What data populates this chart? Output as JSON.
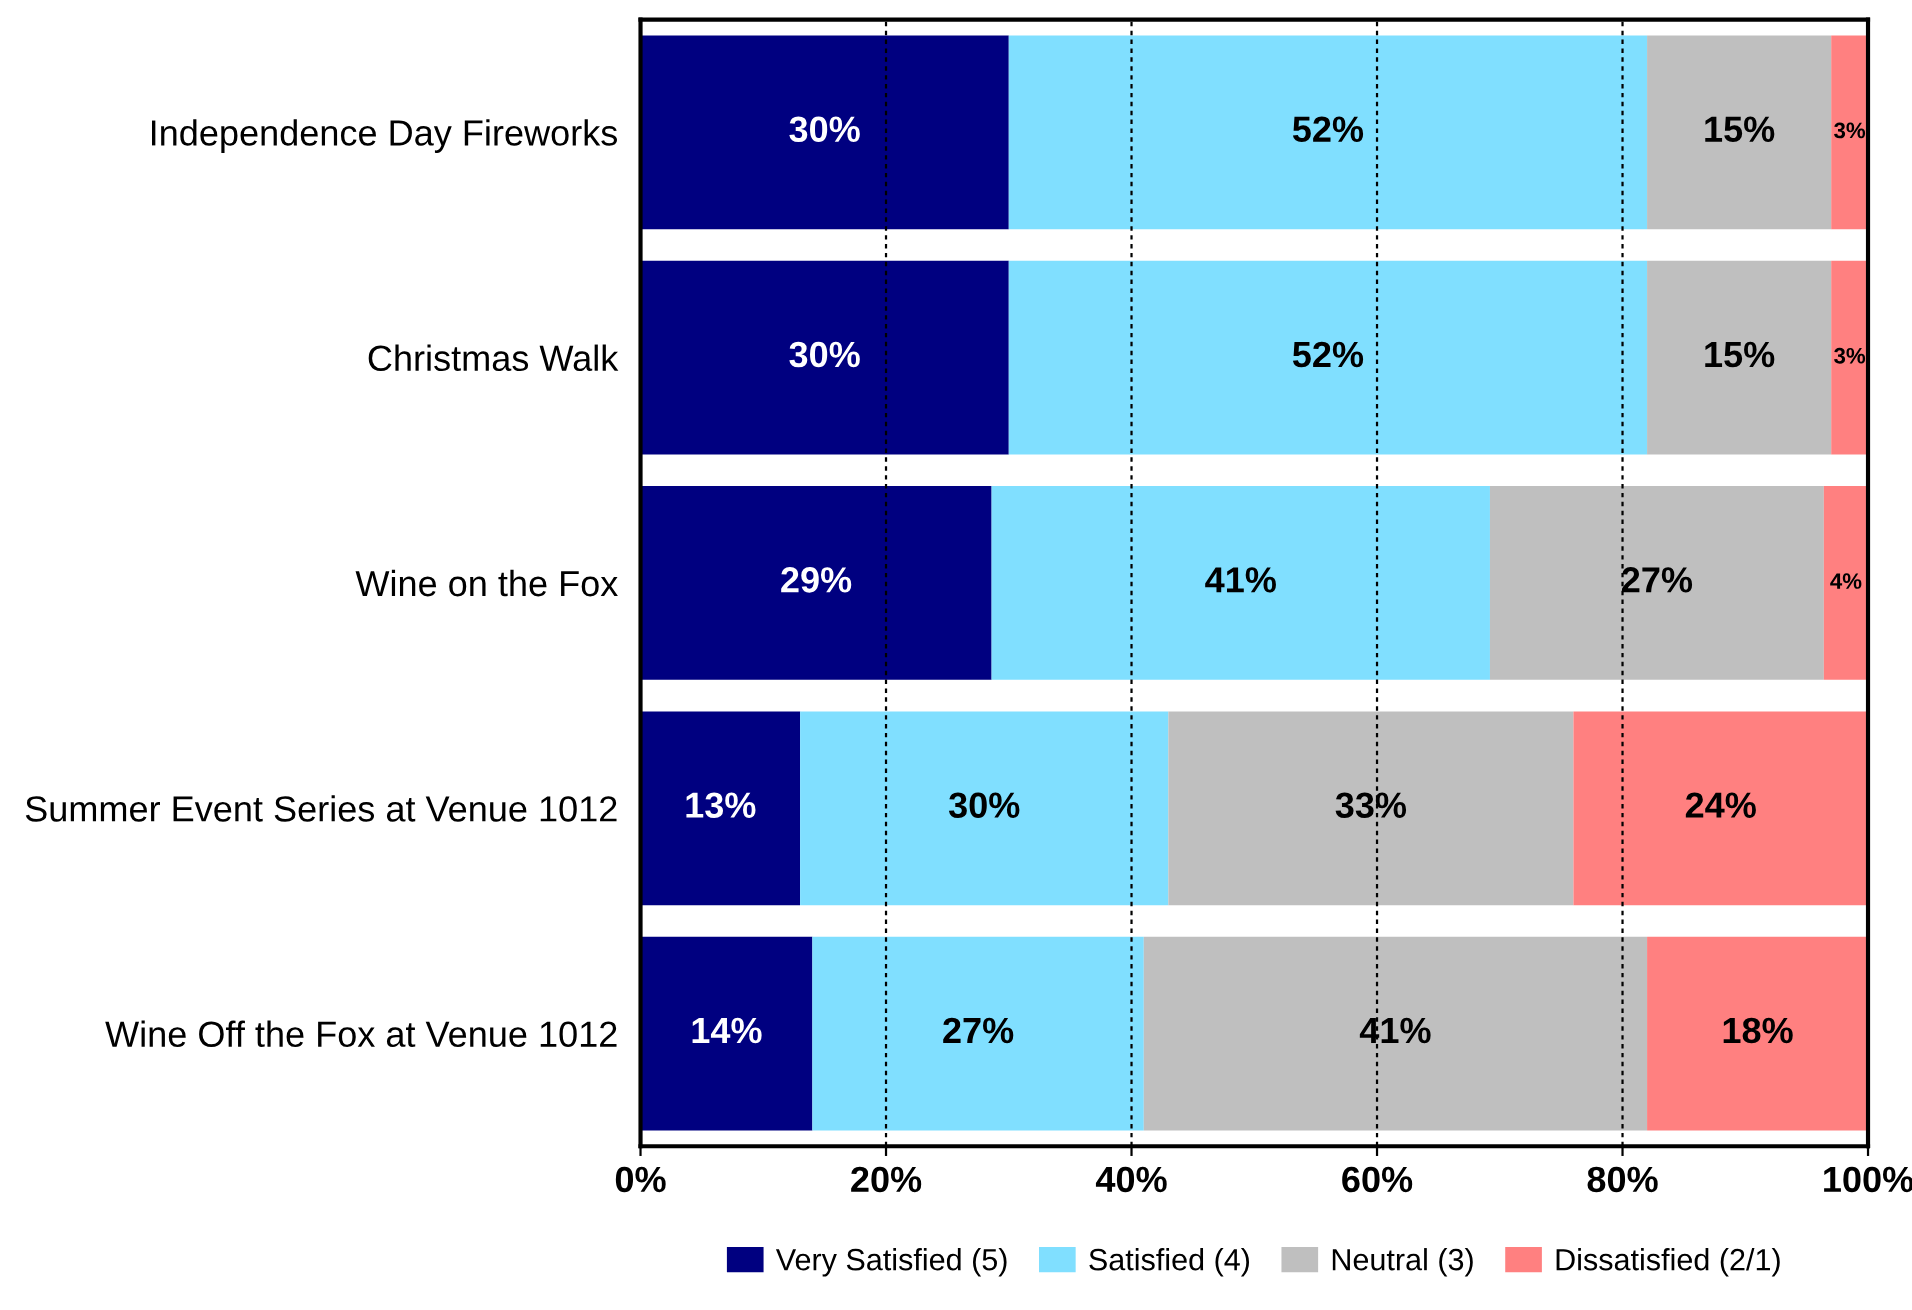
{
  "chart_data": {
    "type": "bar",
    "orientation": "horizontal",
    "stacked": true,
    "categories": [
      "Independence Day Fireworks",
      "Christmas Walk",
      "Wine on the Fox",
      "Summer Event Series at Venue 1012",
      "Wine Off the Fox at Venue 1012"
    ],
    "series": [
      {
        "name": "Very Satisfied (5)",
        "color": "#000080",
        "values": [
          30,
          30,
          28.6,
          13,
          14
        ],
        "value_labels": [
          "30%",
          "30%",
          "29%",
          "13%",
          "14%"
        ]
      },
      {
        "name": "Satisfied (4)",
        "color": "#80dfff",
        "values": [
          52,
          52,
          40.6,
          30,
          27
        ],
        "value_labels": [
          "52%",
          "52%",
          "41%",
          "30%",
          "27%"
        ]
      },
      {
        "name": "Neutral (3)",
        "color": "#bfbfbf",
        "values": [
          15,
          15,
          27.2,
          33,
          41
        ],
        "value_labels": [
          "15%",
          "15%",
          "27%",
          "33%",
          "41%"
        ]
      },
      {
        "name": "Dissatisfied (2/1)",
        "color": "#ff8080",
        "values": [
          3,
          3,
          3.6,
          24,
          18
        ],
        "value_labels": [
          "3%",
          "3%",
          "4%",
          "24%",
          "18%"
        ]
      }
    ],
    "xlim": [
      0,
      100
    ],
    "xticks": [
      {
        "value": 0,
        "label": "0%"
      },
      {
        "value": 20,
        "label": "20%"
      },
      {
        "value": 40,
        "label": "40%"
      },
      {
        "value": 60,
        "label": "60%"
      },
      {
        "value": 80,
        "label": "80%"
      },
      {
        "value": 100,
        "label": "100%"
      }
    ],
    "grid": "x",
    "legend": "bottom"
  }
}
